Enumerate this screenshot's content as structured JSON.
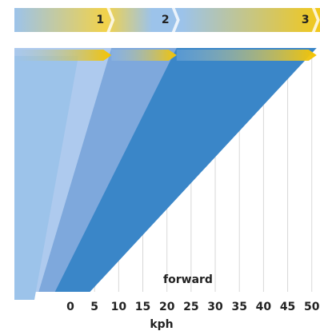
{
  "chart_data": {
    "type": "gear-range",
    "categories": [
      "1",
      "2",
      "3"
    ],
    "values": [
      8.5,
      22,
      51
    ],
    "colors": [
      "#aecaee",
      "#7ea8dc",
      "#3a86c8"
    ],
    "xlim": [
      -11.6,
      51.7
    ],
    "xticks": [
      0,
      5,
      10,
      15,
      20,
      25,
      30,
      35,
      40,
      45,
      50
    ],
    "xlabel": "kph",
    "annotation": "forward",
    "grid": true
  }
}
